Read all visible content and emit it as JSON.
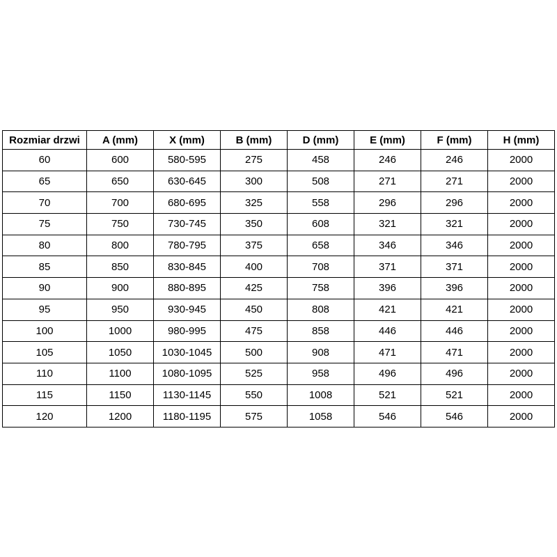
{
  "table": {
    "headers": [
      "Rozmiar drzwi",
      "A (mm)",
      "X (mm)",
      "B (mm)",
      "D (mm)",
      "E (mm)",
      "F (mm)",
      "H (mm)"
    ],
    "rows": [
      [
        "60",
        "600",
        "580-595",
        "275",
        "458",
        "246",
        "246",
        "2000"
      ],
      [
        "65",
        "650",
        "630-645",
        "300",
        "508",
        "271",
        "271",
        "2000"
      ],
      [
        "70",
        "700",
        "680-695",
        "325",
        "558",
        "296",
        "296",
        "2000"
      ],
      [
        "75",
        "750",
        "730-745",
        "350",
        "608",
        "321",
        "321",
        "2000"
      ],
      [
        "80",
        "800",
        "780-795",
        "375",
        "658",
        "346",
        "346",
        "2000"
      ],
      [
        "85",
        "850",
        "830-845",
        "400",
        "708",
        "371",
        "371",
        "2000"
      ],
      [
        "90",
        "900",
        "880-895",
        "425",
        "758",
        "396",
        "396",
        "2000"
      ],
      [
        "95",
        "950",
        "930-945",
        "450",
        "808",
        "421",
        "421",
        "2000"
      ],
      [
        "100",
        "1000",
        "980-995",
        "475",
        "858",
        "446",
        "446",
        "2000"
      ],
      [
        "105",
        "1050",
        "1030-1045",
        "500",
        "908",
        "471",
        "471",
        "2000"
      ],
      [
        "110",
        "1100",
        "1080-1095",
        "525",
        "958",
        "496",
        "496",
        "2000"
      ],
      [
        "115",
        "1150",
        "1130-1145",
        "550",
        "1008",
        "521",
        "521",
        "2000"
      ],
      [
        "120",
        "1200",
        "1180-1195",
        "575",
        "1058",
        "546",
        "546",
        "2000"
      ]
    ],
    "border_color": "#000000",
    "background_color": "#ffffff",
    "text_color": "#000000"
  }
}
